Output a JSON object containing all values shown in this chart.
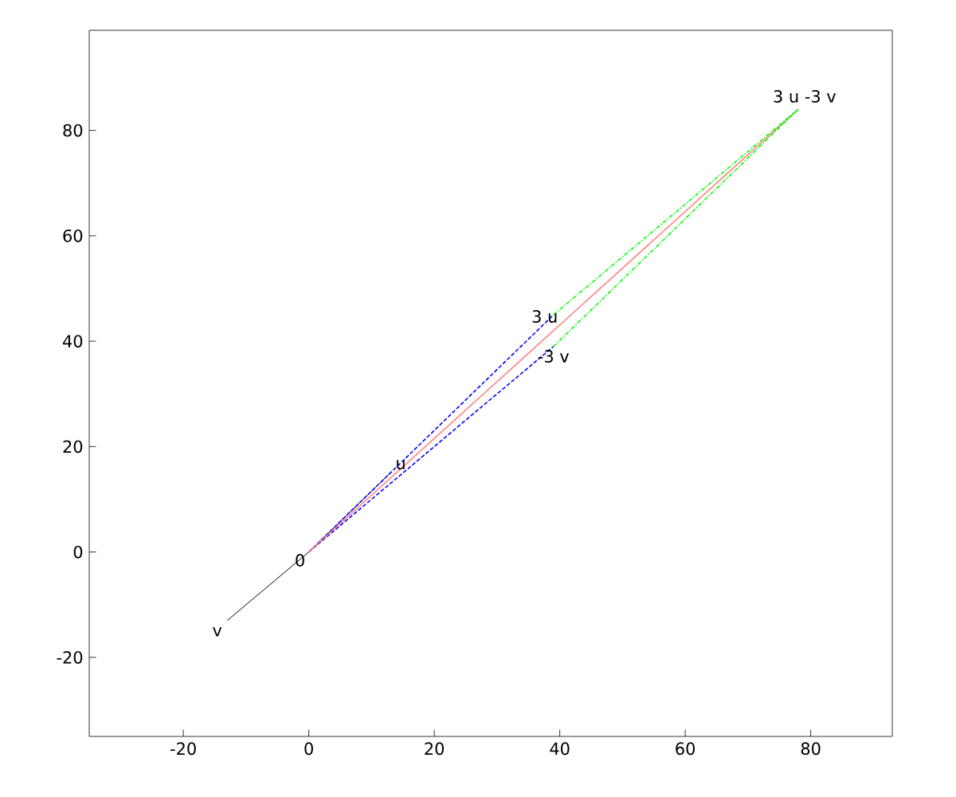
{
  "chart_data": {
    "type": "line",
    "series": [
      {
        "color": "#000000",
        "line_style": "solid",
        "x": [
          -13,
          0,
          13
        ],
        "values": [
          -13,
          0,
          15
        ]
      },
      {
        "color": "#0000ff",
        "line_style": "dashed",
        "x": [
          0,
          39
        ],
        "values": [
          0,
          45
        ]
      },
      {
        "color": "#0000ff",
        "line_style": "dashed",
        "x": [
          0,
          39
        ],
        "values": [
          0,
          39
        ]
      },
      {
        "color": "#ff8080",
        "line_style": "dotted",
        "x": [
          0,
          78
        ],
        "values": [
          0,
          84
        ]
      },
      {
        "color": "#00ff00",
        "line_style": "dashdot",
        "x": [
          39,
          78
        ],
        "values": [
          45,
          84
        ]
      },
      {
        "color": "#00ff00",
        "line_style": "dashdot",
        "x": [
          39,
          78
        ],
        "values": [
          39,
          84
        ]
      }
    ],
    "annotations": [
      {
        "text": "0",
        "x": 0,
        "y": 0
      },
      {
        "text": "u",
        "x": 13,
        "y": 15
      },
      {
        "text": "v",
        "x": -13,
        "y": -13
      },
      {
        "text": "3 u",
        "x": 39,
        "y": 45
      },
      {
        "text": "-3 v",
        "x": 39,
        "y": 39
      },
      {
        "text": "3 u -3 v",
        "x": 78,
        "y": 84
      }
    ],
    "xlim": [
      -35,
      93
    ],
    "ylim": [
      -35,
      99
    ],
    "xticks": [
      -20,
      0,
      20,
      40,
      60,
      80
    ],
    "yticks": [
      -20,
      0,
      20,
      40,
      60,
      80
    ],
    "grid": false
  }
}
